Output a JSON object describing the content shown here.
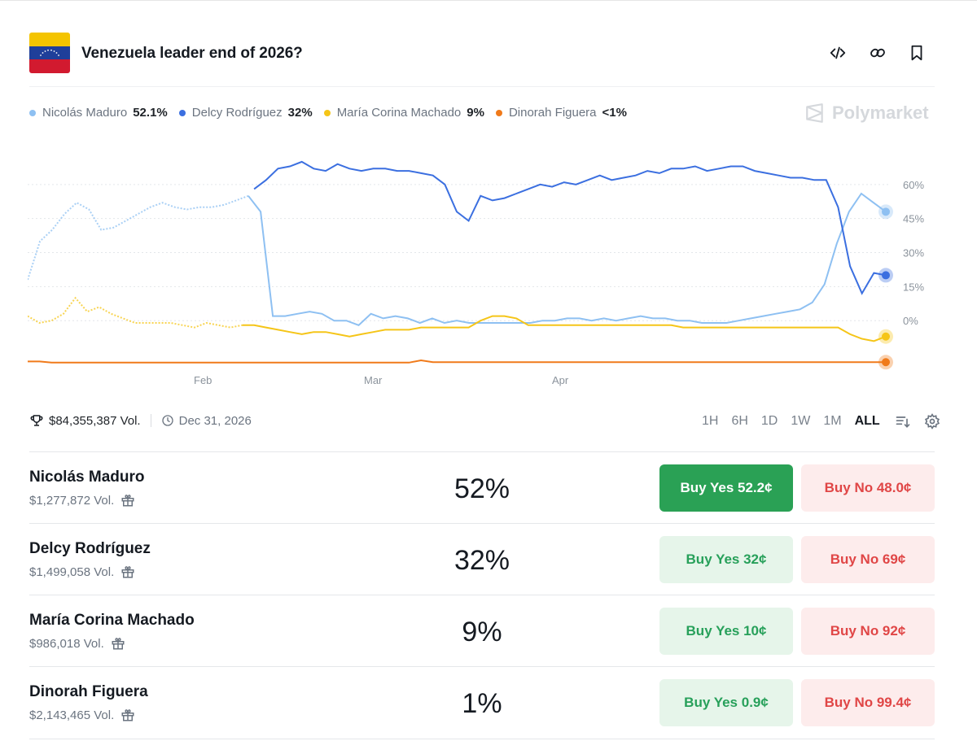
{
  "market": {
    "title": "Venezuela leader end of 2026?",
    "volume": "$84,355,387 Vol.",
    "end_date": "Dec 31, 2026",
    "brand": "Polymarket"
  },
  "legend": [
    {
      "name": "Nicolás Maduro",
      "value": "52.1%",
      "color": "#8ec0f2"
    },
    {
      "name": "Delcy Rodríguez",
      "value": "32%",
      "color": "#3b6fe0"
    },
    {
      "name": "María Corina Machado",
      "value": "9%",
      "color": "#f5c518"
    },
    {
      "name": "Dinorah Figuera",
      "value": "<1%",
      "color": "#f07a1a"
    }
  ],
  "ranges": [
    "1H",
    "6H",
    "1D",
    "1W",
    "1M",
    "ALL"
  ],
  "active_range": "ALL",
  "chart_data": {
    "type": "line",
    "x_labels": [
      "Feb",
      "Mar",
      "Apr"
    ],
    "y_ticks": [
      "60%",
      "45%",
      "30%",
      "15%",
      "0%"
    ],
    "ylim": [
      -20,
      75
    ],
    "grid": true,
    "legend_position": "top-left",
    "series": [
      {
        "name": "Nicolás Maduro",
        "color": "#8ec0f2",
        "values": [
          18,
          35,
          40,
          47,
          52,
          49,
          40,
          41,
          44,
          47,
          50,
          52,
          50,
          49,
          50,
          50,
          51,
          53,
          55,
          48,
          2,
          2,
          3,
          4,
          3,
          0,
          0,
          -2,
          3,
          1,
          2,
          1,
          -1,
          1,
          -1,
          0,
          -1,
          -1,
          -1,
          -1,
          -1,
          -1,
          0,
          0,
          1,
          1,
          0,
          1,
          0,
          1,
          2,
          1,
          1,
          0,
          0,
          -1,
          -1,
          -1,
          0,
          1,
          2,
          3,
          4,
          5,
          8,
          16,
          34,
          48,
          56,
          52,
          48
        ],
        "dashed_until": 18
      },
      {
        "name": "Delcy Rodríguez",
        "color": "#3b6fe0",
        "values": [
          null,
          null,
          null,
          null,
          null,
          null,
          null,
          null,
          null,
          null,
          null,
          null,
          null,
          null,
          null,
          null,
          null,
          null,
          null,
          58,
          62,
          67,
          68,
          70,
          67,
          66,
          69,
          67,
          66,
          67,
          67,
          66,
          66,
          65,
          64,
          60,
          48,
          44,
          55,
          53,
          54,
          56,
          58,
          60,
          59,
          61,
          60,
          62,
          64,
          62,
          63,
          64,
          66,
          65,
          67,
          67,
          68,
          66,
          67,
          68,
          68,
          66,
          65,
          64,
          63,
          63,
          62,
          62,
          50,
          24,
          12,
          21,
          20
        ]
      },
      {
        "name": "María Corina Machado",
        "color": "#f5c518",
        "values": [
          2,
          -1,
          0,
          3,
          10,
          4,
          6,
          3,
          1,
          -1,
          -1,
          -1,
          -1,
          -2,
          -3,
          -1,
          -2,
          -3,
          -2,
          -2,
          -3,
          -4,
          -5,
          -6,
          -5,
          -5,
          -6,
          -7,
          -6,
          -5,
          -4,
          -4,
          -4,
          -3,
          -3,
          -3,
          -3,
          -3,
          0,
          2,
          2,
          1,
          -2,
          -2,
          -2,
          -2,
          -2,
          -2,
          -2,
          -2,
          -2,
          -2,
          -2,
          -2,
          -2,
          -3,
          -3,
          -3,
          -3,
          -3,
          -3,
          -3,
          -3,
          -3,
          -3,
          -3,
          -3,
          -3,
          -3,
          -6,
          -8,
          -9,
          -7
        ],
        "dashed_until": 18
      },
      {
        "name": "Dinorah Figuera",
        "color": "#f07a1a",
        "values": [
          -18,
          -18,
          -18.5,
          -18.5,
          -18.5,
          -18.5,
          -18.5,
          -18.5,
          -18.5,
          -18.5,
          -18.5,
          -18.5,
          -18.5,
          -18.5,
          -18.5,
          -18.5,
          -18.5,
          -18.5,
          -18.5,
          -18.5,
          -18.5,
          -18.5,
          -18.5,
          -18.5,
          -18.5,
          -18.5,
          -18.5,
          -18.5,
          -18.5,
          -18.5,
          -18.5,
          -18.5,
          -18.5,
          -17.5,
          -18.3,
          -18.3,
          -18.3,
          -18.3,
          -18.3,
          -18.3,
          -18.3,
          -18.3,
          -18.3,
          -18.3,
          -18.3,
          -18.3,
          -18.3,
          -18.3,
          -18.3,
          -18.3,
          -18.3,
          -18.3,
          -18.3,
          -18.3,
          -18.3,
          -18.3,
          -18.3,
          -18.3,
          -18.3,
          -18.3,
          -18.3,
          -18.3,
          -18.3,
          -18.3,
          -18.3,
          -18.3,
          -18.3,
          -18.3,
          -18.3,
          -18.3,
          -18.3,
          -18.3,
          -18.3
        ]
      }
    ]
  },
  "outcomes": [
    {
      "name": "Nicolás Maduro",
      "volume": "$1,277,872 Vol.",
      "percent": "52%",
      "buy_yes": "Buy Yes 52.2¢",
      "buy_no": "Buy No 48.0¢"
    },
    {
      "name": "Delcy Rodríguez",
      "volume": "$1,499,058 Vol.",
      "percent": "32%",
      "buy_yes": "Buy Yes 32¢",
      "buy_no": "Buy No 69¢"
    },
    {
      "name": "María Corina Machado",
      "volume": "$986,018 Vol.",
      "percent": "9%",
      "buy_yes": "Buy Yes 10¢",
      "buy_no": "Buy No 92¢"
    },
    {
      "name": "Dinorah Figuera",
      "volume": "$2,143,465 Vol.",
      "percent": "1%",
      "buy_yes": "Buy Yes 0.9¢",
      "buy_no": "Buy No 99.4¢"
    }
  ],
  "icons": [
    "embed-icon",
    "link-icon",
    "bookmark-icon",
    "trophy-icon",
    "clock-icon",
    "sort-icon",
    "settings-icon",
    "gift-icon"
  ]
}
